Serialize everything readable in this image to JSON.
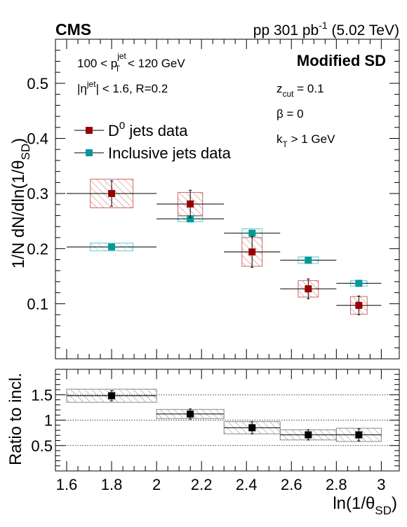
{
  "colors": {
    "d0": "#990000",
    "incl": "#009999",
    "d0_hatch": "#cc6666",
    "incl_hatch": "#66cccc",
    "ratio": "#000000",
    "ratio_hatch": "#888888"
  },
  "header": {
    "experiment": "CMS",
    "lumi_pre": "pp 301 pb",
    "lumi_sup": "-1",
    "lumi_post": " (5.02 TeV)"
  },
  "labels": {
    "method": "Modified SD",
    "pt_pre": "100 < p",
    "pt_sup": "jet",
    "pt_sub": "T",
    "pt_post": " < 120 GeV",
    "eta_pre": "|η",
    "eta_sup": "jet",
    "eta_post": "| < 1.6, R=0.2",
    "zcut_pre": "z",
    "zcut_sub": "cut",
    "zcut_post": " = 0.1",
    "beta": "β = 0",
    "kt_pre": "k",
    "kt_sub": "T",
    "kt_post": " > 1 GeV"
  },
  "chart_data": [
    {
      "type": "scatter",
      "ylabel_pre": "1/N dN/dln(1/θ",
      "ylabel_sub": "SD",
      "ylabel_post": ")",
      "xlim": [
        1.55,
        3.08
      ],
      "ylim": [
        0.0,
        0.58
      ],
      "yticks": [
        0.1,
        0.2,
        0.3,
        0.4,
        0.5
      ],
      "yticklabels": [
        "0.1",
        "0.2",
        "0.3",
        "0.4",
        "0.5"
      ],
      "legend_position": "upper-left",
      "series": [
        {
          "name": "D⁰ jets data",
          "legend_pre": "D",
          "legend_sup": "0",
          "legend_post": " jets data",
          "x": [
            1.8,
            2.15,
            2.425,
            2.675,
            2.9
          ],
          "xerr_low": [
            0.2,
            0.15,
            0.125,
            0.125,
            0.1
          ],
          "xerr_high": [
            0.2,
            0.15,
            0.125,
            0.125,
            0.1
          ],
          "y": [
            0.3,
            0.281,
            0.194,
            0.127,
            0.097
          ],
          "stat_err": [
            0.023,
            0.025,
            0.028,
            0.018,
            0.017
          ],
          "syst_box_halfwidth": [
            0.095,
            0.055,
            0.045,
            0.045,
            0.037
          ],
          "syst_err": [
            0.026,
            0.021,
            0.026,
            0.015,
            0.016
          ]
        },
        {
          "name": "Inclusive jets data",
          "legend_pre": "",
          "legend_sup": "",
          "legend_post": "Inclusive jets data",
          "x": [
            1.8,
            2.15,
            2.425,
            2.675,
            2.9
          ],
          "xerr_low": [
            0.2,
            0.15,
            0.125,
            0.125,
            0.1
          ],
          "xerr_high": [
            0.2,
            0.15,
            0.125,
            0.125,
            0.1
          ],
          "y": [
            0.203,
            0.254,
            0.228,
            0.179,
            0.137
          ],
          "stat_err": [
            0.002,
            0.002,
            0.002,
            0.002,
            0.002
          ],
          "syst_box_halfwidth": [
            0.095,
            0.055,
            0.045,
            0.045,
            0.037
          ],
          "syst_err": [
            0.007,
            0.005,
            0.008,
            0.006,
            0.005
          ]
        }
      ]
    },
    {
      "type": "scatter",
      "ylabel": "Ratio to incl.",
      "xlabel_pre": "ln(1/θ",
      "xlabel_sub": "SD",
      "xlabel_post": ")",
      "xlim": [
        1.55,
        3.08
      ],
      "ylim": [
        0.0,
        2.0
      ],
      "xticks": [
        1.6,
        1.8,
        2.0,
        2.2,
        2.4,
        2.6,
        2.8,
        3.0
      ],
      "xticklabels": [
        "1.6",
        "1.8",
        "2",
        "2.2",
        "2.4",
        "2.6",
        "2.8",
        "3"
      ],
      "yticks": [
        0.5,
        1.0,
        1.5
      ],
      "yticklabels": [
        "0.5",
        "1",
        "1.5"
      ],
      "reference_lines": [
        0.5,
        1.0,
        1.5
      ],
      "series": [
        {
          "x": [
            1.8,
            2.15,
            2.425,
            2.675,
            2.9
          ],
          "xerr_low": [
            0.2,
            0.15,
            0.125,
            0.125,
            0.1
          ],
          "xerr_high": [
            0.2,
            0.15,
            0.125,
            0.125,
            0.1
          ],
          "y": [
            1.48,
            1.12,
            0.85,
            0.71,
            0.71
          ],
          "stat_err": [
            0.1,
            0.1,
            0.12,
            0.1,
            0.12
          ],
          "syst_box_low": [
            1.6,
            2.0,
            2.3,
            2.55,
            2.8
          ],
          "syst_box_high": [
            2.0,
            2.3,
            2.55,
            2.8,
            3.0
          ],
          "syst_err": [
            0.13,
            0.09,
            0.12,
            0.1,
            0.13
          ]
        }
      ]
    }
  ]
}
